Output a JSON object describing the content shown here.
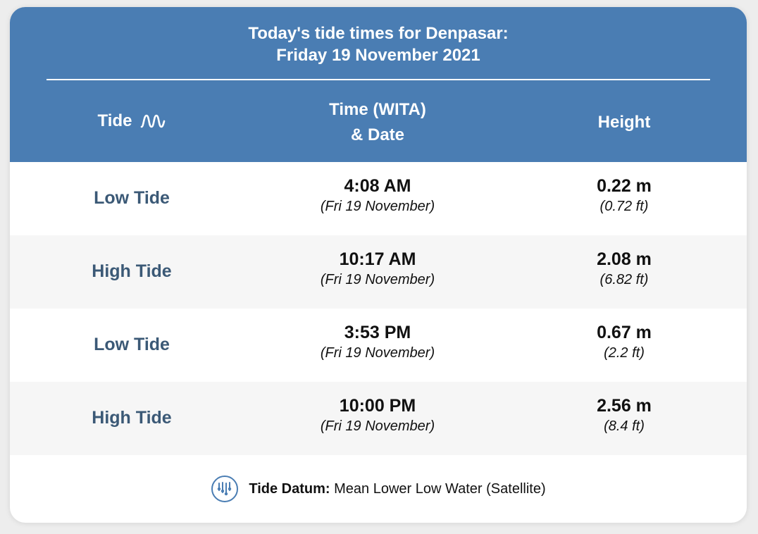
{
  "header": {
    "title_line1": "Today's tide times for Denpasar:",
    "title_line2": "Friday 19 November 2021",
    "col_tide": "Tide",
    "col_time_line1": "Time (WITA)",
    "col_time_line2": "& Date",
    "col_height": "Height",
    "accent_color": "#4a7db3",
    "tide_icon": "wave-icon"
  },
  "rows": [
    {
      "tide": "Low Tide",
      "time": "4:08 AM",
      "date": "(Fri 19 November)",
      "height_m": "0.22 m",
      "height_ft": "(0.72 ft)"
    },
    {
      "tide": "High Tide",
      "time": "10:17 AM",
      "date": "(Fri 19 November)",
      "height_m": "2.08 m",
      "height_ft": "(6.82 ft)"
    },
    {
      "tide": "Low Tide",
      "time": "3:53 PM",
      "date": "(Fri 19 November)",
      "height_m": "0.67 m",
      "height_ft": "(2.2 ft)"
    },
    {
      "tide": "High Tide",
      "time": "10:00 PM",
      "date": "(Fri 19 November)",
      "height_m": "2.56 m",
      "height_ft": "(8.4 ft)"
    }
  ],
  "footer": {
    "icon": "tide-datum-icon",
    "label": "Tide Datum:",
    "value": "Mean Lower Low Water (Satellite)"
  }
}
